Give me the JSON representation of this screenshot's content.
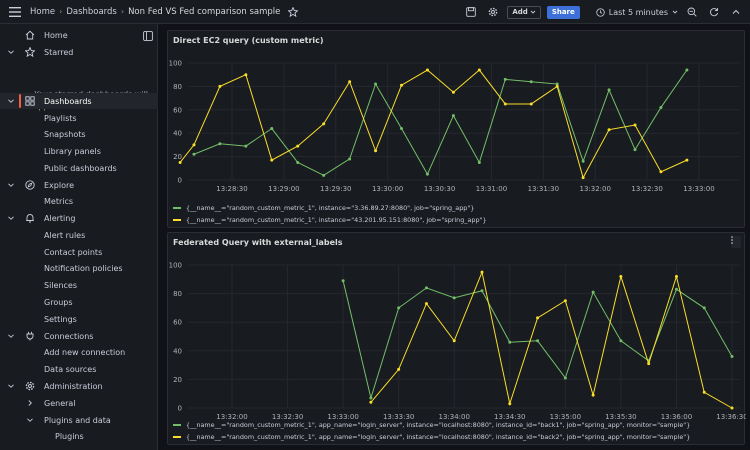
{
  "topbar": {
    "breadcrumb": [
      "Home",
      "Dashboards",
      "Non Fed VS Fed comparison sample"
    ],
    "add_label": "Add",
    "share_label": "Share",
    "time_range": "Last 5 minutes"
  },
  "sidebar": {
    "items": [
      {
        "label": "Home",
        "icon": "home-icon",
        "chevron": false
      },
      {
        "label": "Starred",
        "icon": "star-icon",
        "chevron": true
      },
      {
        "label": "Dashboards",
        "icon": "dashboards-icon",
        "chevron": true,
        "active": true
      },
      {
        "label": "Playlists",
        "child": true
      },
      {
        "label": "Snapshots",
        "child": true
      },
      {
        "label": "Library panels",
        "child": true
      },
      {
        "label": "Public dashboards",
        "child": true
      },
      {
        "label": "Explore",
        "icon": "compass-icon",
        "chevron": true
      },
      {
        "label": "Metrics",
        "child": true
      },
      {
        "label": "Alerting",
        "icon": "bell-icon",
        "chevron": true
      },
      {
        "label": "Alert rules",
        "child": true
      },
      {
        "label": "Contact points",
        "child": true
      },
      {
        "label": "Notification policies",
        "child": true
      },
      {
        "label": "Silences",
        "child": true
      },
      {
        "label": "Groups",
        "child": true
      },
      {
        "label": "Settings",
        "child": true
      },
      {
        "label": "Connections",
        "icon": "plug-icon",
        "chevron": true
      },
      {
        "label": "Add new connection",
        "child": true
      },
      {
        "label": "Data sources",
        "child": true
      },
      {
        "label": "Administration",
        "icon": "gear-icon",
        "chevron": true
      },
      {
        "label": "General",
        "child": true,
        "chevron": true
      },
      {
        "label": "Plugins and data",
        "child": true,
        "chevron": true
      },
      {
        "label": "Plugins",
        "grandchild": true
      }
    ],
    "starred_note": "Your starred dashboards will appear here"
  },
  "colors": {
    "green": "#73bf69",
    "yellow": "#fade2a",
    "accent": "#f55f3e",
    "primary": "#3d71d9"
  },
  "chart_data": [
    {
      "type": "line",
      "title": "Direct EC2 query (custom metric)",
      "ylim": [
        0,
        100
      ],
      "yticks": [
        0,
        20,
        40,
        60,
        80,
        100
      ],
      "xticks": [
        "13:28:30",
        "13:29:00",
        "13:29:30",
        "13:30:00",
        "13:30:30",
        "13:31:00",
        "13:31:30",
        "13:32:00",
        "13:32:30",
        "13:33:00"
      ],
      "x": [
        "13:28:00",
        "13:28:08",
        "13:28:23",
        "13:28:38",
        "13:28:53",
        "13:29:08",
        "13:29:23",
        "13:29:38",
        "13:29:53",
        "13:30:08",
        "13:30:23",
        "13:30:38",
        "13:30:53",
        "13:31:08",
        "13:31:23",
        "13:31:38",
        "13:31:53",
        "13:32:08",
        "13:32:23",
        "13:32:38",
        "13:32:53",
        "13:33:08"
      ],
      "series": [
        {
          "name": "{__name__=\"random_custom_metric_1\", instance=\"3.36.89.27:8080\", job=\"spring_app\"}",
          "color": "#73bf69",
          "values": [
            null,
            22,
            31,
            29,
            44,
            15,
            4,
            18,
            82,
            44,
            5,
            55,
            15,
            86,
            84,
            82,
            16,
            77,
            26,
            62,
            94,
            null
          ]
        },
        {
          "name": "{__name__=\"random_custom_metric_1\", instance=\"43.201.95.151:8080\", job=\"spring_app\"}",
          "color": "#fade2a",
          "values": [
            15,
            30,
            80,
            90,
            17,
            29,
            48,
            84,
            25,
            81,
            94,
            75,
            94,
            65,
            65,
            80,
            2,
            43,
            47,
            7,
            17,
            null
          ]
        }
      ]
    },
    {
      "type": "line",
      "title": "Federated Query with external_labels",
      "ylim": [
        0,
        100
      ],
      "yticks": [
        0,
        20,
        40,
        60,
        80,
        100
      ],
      "xticks": [
        "13:32:00",
        "13:32:30",
        "13:33:00",
        "13:33:30",
        "13:34:00",
        "13:34:30",
        "13:35:00",
        "13:35:30",
        "13:36:00",
        "13:36:30"
      ],
      "x": [
        "13:33:00",
        "13:33:15",
        "13:33:30",
        "13:33:45",
        "13:34:00",
        "13:34:15",
        "13:34:30",
        "13:34:45",
        "13:35:00",
        "13:35:15",
        "13:35:30",
        "13:35:45",
        "13:36:00",
        "13:36:15",
        "13:36:30"
      ],
      "series": [
        {
          "name": "{__name__=\"random_custom_metric_1\", app_name=\"login_server\", instance=\"localhost:8080\", instance_id=\"back1\", job=\"spring_app\", monitor=\"sample\"}",
          "color": "#73bf69",
          "values": [
            89,
            7,
            70,
            84,
            77,
            82,
            46,
            47,
            21,
            81,
            47,
            33,
            83,
            70,
            36
          ]
        },
        {
          "name": "{__name__=\"random_custom_metric_1\", app_name=\"login_server\", instance=\"localhost:8080\", instance_id=\"back2\", job=\"spring_app\", monitor=\"sample\"}",
          "color": "#fade2a",
          "values": [
            null,
            4,
            27,
            73,
            47,
            95,
            3,
            63,
            75,
            9,
            92,
            31,
            92,
            11,
            0
          ]
        }
      ]
    }
  ]
}
